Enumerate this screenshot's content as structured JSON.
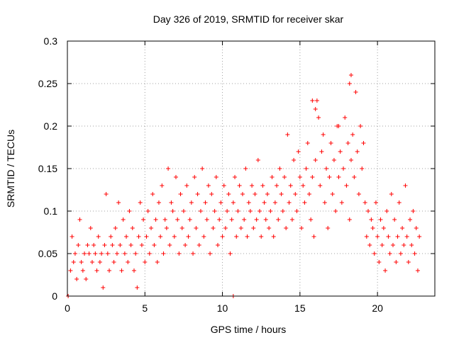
{
  "chart_data": {
    "type": "scatter",
    "title": "Day 326 of 2019, SRMTID for receiver skar",
    "xlabel": "GPS time / hours",
    "ylabel": "SRMTID / TECUs",
    "xlim": [
      0,
      23.7
    ],
    "ylim": [
      0,
      0.3
    ],
    "x_ticks": [
      0,
      5,
      10,
      15,
      20
    ],
    "x_tick_labels": [
      "0",
      "5",
      "10",
      "15",
      "20"
    ],
    "y_ticks": [
      0,
      0.05,
      0.1,
      0.15,
      0.2,
      0.25,
      0.3
    ],
    "y_tick_labels": [
      "0",
      "0.05",
      "0.1",
      "0.15",
      "0.2",
      "0.25",
      "0.3"
    ],
    "grid": true,
    "marker": "+",
    "color": "#ff0000",
    "series": [
      {
        "name": "SRMTID",
        "x": [
          0.2,
          0.3,
          0.4,
          0.5,
          0.6,
          0.7,
          0.8,
          0.9,
          1.0,
          1.1,
          1.2,
          1.3,
          1.4,
          1.5,
          1.6,
          1.7,
          1.8,
          1.9,
          2.0,
          2.1,
          2.2,
          2.3,
          2.4,
          2.5,
          2.6,
          2.7,
          2.8,
          2.9,
          3.0,
          3.1,
          3.2,
          3.3,
          3.4,
          3.5,
          3.6,
          3.7,
          3.8,
          3.9,
          4.0,
          4.1,
          4.2,
          4.3,
          4.4,
          4.5,
          4.6,
          4.7,
          4.8,
          4.9,
          5.0,
          5.1,
          5.2,
          5.3,
          5.4,
          5.5,
          5.6,
          5.7,
          5.8,
          5.9,
          6.0,
          6.1,
          6.2,
          6.3,
          6.4,
          6.5,
          6.6,
          6.7,
          6.8,
          6.9,
          7.0,
          7.1,
          7.2,
          7.3,
          7.4,
          7.5,
          7.6,
          7.7,
          7.8,
          7.9,
          8.0,
          8.1,
          8.2,
          8.3,
          8.4,
          8.5,
          8.6,
          8.7,
          8.8,
          8.9,
          9.0,
          9.1,
          9.2,
          9.3,
          9.4,
          9.5,
          9.6,
          9.7,
          9.8,
          9.9,
          10.0,
          10.1,
          10.2,
          10.3,
          10.4,
          10.5,
          10.6,
          10.7,
          10.8,
          10.9,
          11.0,
          11.1,
          11.2,
          11.3,
          11.4,
          11.5,
          11.6,
          11.7,
          11.8,
          11.9,
          12.0,
          12.1,
          12.2,
          12.3,
          12.4,
          12.5,
          12.6,
          12.7,
          12.8,
          12.9,
          13.0,
          13.1,
          13.2,
          13.3,
          13.4,
          13.5,
          13.6,
          13.7,
          13.8,
          13.9,
          14.0,
          14.1,
          14.2,
          14.3,
          14.4,
          14.5,
          14.6,
          14.7,
          14.8,
          14.9,
          15.0,
          15.1,
          15.2,
          15.3,
          15.4,
          15.5,
          15.6,
          15.7,
          15.8,
          15.9,
          16.0,
          16.1,
          16.2,
          16.3,
          16.4,
          16.5,
          16.6,
          16.7,
          16.8,
          16.9,
          17.0,
          17.1,
          17.2,
          17.3,
          17.4,
          17.5,
          17.6,
          17.7,
          17.8,
          17.9,
          18.0,
          18.1,
          18.2,
          18.3,
          18.4,
          18.5,
          18.6,
          18.7,
          18.8,
          18.9,
          19.0,
          19.1,
          19.2,
          19.3,
          19.4,
          19.5,
          19.6,
          19.7,
          19.8,
          19.9,
          20.0,
          20.1,
          20.2,
          20.3,
          20.4,
          20.5,
          20.6,
          20.7,
          20.8,
          20.9,
          21.0,
          21.1,
          21.2,
          21.3,
          21.4,
          21.5,
          21.6,
          21.7,
          21.8,
          21.9,
          22.0,
          22.1,
          22.2,
          22.3,
          22.4,
          22.5,
          22.6,
          22.7,
          0.05,
          10.7,
          16.0,
          18.2,
          18.3,
          17.5,
          15.8
        ],
        "y": [
          0.03,
          0.07,
          0.04,
          0.05,
          0.02,
          0.06,
          0.09,
          0.04,
          0.03,
          0.05,
          0.02,
          0.06,
          0.05,
          0.08,
          0.04,
          0.06,
          0.05,
          0.03,
          0.07,
          0.04,
          0.05,
          0.01,
          0.06,
          0.12,
          0.05,
          0.03,
          0.07,
          0.06,
          0.04,
          0.08,
          0.05,
          0.11,
          0.06,
          0.03,
          0.09,
          0.05,
          0.07,
          0.04,
          0.1,
          0.06,
          0.08,
          0.03,
          0.05,
          0.01,
          0.07,
          0.11,
          0.06,
          0.09,
          0.04,
          0.07,
          0.1,
          0.05,
          0.08,
          0.12,
          0.06,
          0.09,
          0.04,
          0.11,
          0.07,
          0.13,
          0.05,
          0.09,
          0.08,
          0.15,
          0.06,
          0.11,
          0.1,
          0.07,
          0.14,
          0.09,
          0.05,
          0.12,
          0.08,
          0.1,
          0.06,
          0.13,
          0.07,
          0.09,
          0.11,
          0.05,
          0.14,
          0.08,
          0.12,
          0.06,
          0.1,
          0.15,
          0.07,
          0.11,
          0.09,
          0.13,
          0.05,
          0.12,
          0.08,
          0.1,
          0.14,
          0.06,
          0.09,
          0.11,
          0.07,
          0.13,
          0.08,
          0.1,
          0.12,
          0.05,
          0.09,
          0.11,
          0.14,
          0.07,
          0.1,
          0.13,
          0.08,
          0.12,
          0.09,
          0.15,
          0.07,
          0.11,
          0.1,
          0.13,
          0.08,
          0.12,
          0.09,
          0.16,
          0.1,
          0.07,
          0.13,
          0.11,
          0.09,
          0.12,
          0.08,
          0.1,
          0.14,
          0.07,
          0.11,
          0.13,
          0.09,
          0.15,
          0.12,
          0.1,
          0.14,
          0.08,
          0.19,
          0.11,
          0.13,
          0.09,
          0.16,
          0.12,
          0.1,
          0.17,
          0.14,
          0.08,
          0.13,
          0.11,
          0.15,
          0.18,
          0.12,
          0.09,
          0.14,
          0.07,
          0.16,
          0.23,
          0.21,
          0.13,
          0.17,
          0.19,
          0.11,
          0.15,
          0.08,
          0.14,
          0.18,
          0.12,
          0.16,
          0.1,
          0.2,
          0.14,
          0.17,
          0.11,
          0.15,
          0.21,
          0.13,
          0.18,
          0.09,
          0.16,
          0.19,
          0.14,
          0.24,
          0.17,
          0.12,
          0.2,
          0.15,
          0.18,
          0.11,
          0.07,
          0.1,
          0.06,
          0.09,
          0.08,
          0.05,
          0.11,
          0.07,
          0.04,
          0.09,
          0.06,
          0.08,
          0.03,
          0.1,
          0.07,
          0.05,
          0.12,
          0.06,
          0.09,
          0.04,
          0.07,
          0.11,
          0.05,
          0.08,
          0.06,
          0.13,
          0.07,
          0.04,
          0.09,
          0.06,
          0.1,
          0.05,
          0.08,
          0.03,
          0.07,
          0.0,
          0.0,
          0.22,
          0.25,
          0.26,
          0.2,
          0.23
        ]
      }
    ]
  }
}
